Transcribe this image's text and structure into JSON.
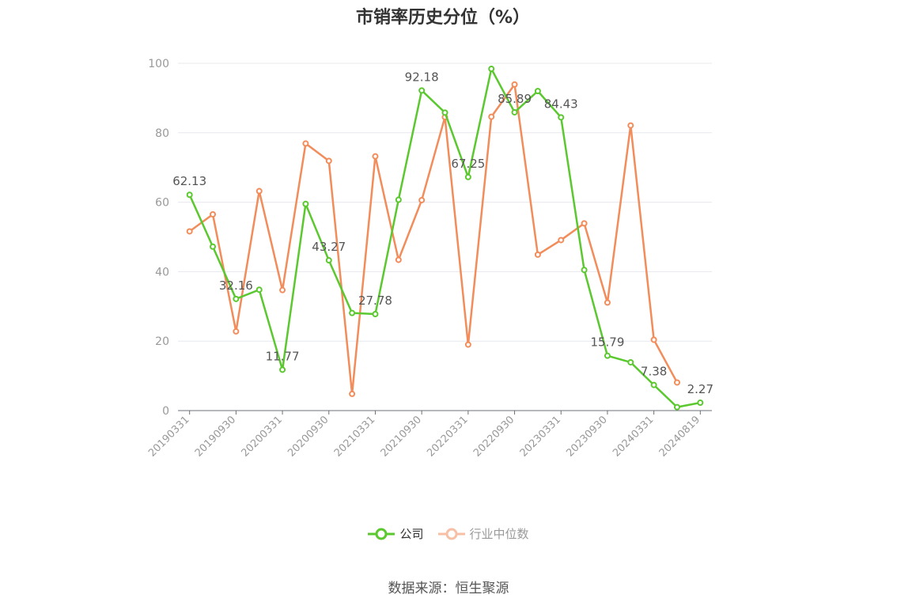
{
  "source_text": "数据来源：恒生聚源",
  "colors": {
    "company": "#5ac82e",
    "industry": "#f28c5a",
    "grid": "#e6e8ee",
    "axis": "#6e7079",
    "tick": "#999999",
    "label": "#555555"
  },
  "chart_data": {
    "type": "line",
    "title": "市销率历史分位（%）",
    "xlabel": "",
    "ylabel": "",
    "ylim": [
      0,
      100
    ],
    "yticks": [
      0,
      20,
      40,
      60,
      80,
      100
    ],
    "grid": true,
    "legend_position": "bottom",
    "x": [
      "20190331",
      "20190630",
      "20190930",
      "20191231",
      "20200331",
      "20200630",
      "20200930",
      "20201231",
      "20210331",
      "20210630",
      "20210930",
      "20211231",
      "20220331",
      "20220630",
      "20220930",
      "20221231",
      "20230331",
      "20230630",
      "20230930",
      "20231231",
      "20240331",
      "20240630",
      "20240819"
    ],
    "xtick_labels": [
      "20190331",
      "20190930",
      "20200331",
      "20200930",
      "20210331",
      "20210930",
      "20220331",
      "20220930",
      "20230331",
      "20230930",
      "20240331",
      "20240819"
    ],
    "series": [
      {
        "name": "公司",
        "values": [
          62.13,
          47.2,
          32.16,
          34.8,
          11.77,
          59.5,
          43.27,
          28.1,
          27.78,
          60.7,
          92.18,
          85.8,
          67.25,
          98.4,
          85.89,
          92.0,
          84.43,
          40.5,
          15.79,
          13.9,
          7.38,
          1.0,
          2.27
        ],
        "labels": [
          "62.13",
          null,
          "32.16",
          null,
          "11.77",
          null,
          "43.27",
          null,
          "27.78",
          null,
          "92.18",
          null,
          "67.25",
          null,
          "85.89",
          null,
          "84.43",
          null,
          "15.79",
          null,
          "7.38",
          null,
          "2.27"
        ]
      },
      {
        "name": "行业中位数",
        "values": [
          51.6,
          56.5,
          22.8,
          63.2,
          34.7,
          76.9,
          71.9,
          4.8,
          73.2,
          43.4,
          60.6,
          84.5,
          19.0,
          84.6,
          93.9,
          44.9,
          49.1,
          53.9,
          31.1,
          82.1,
          20.4,
          8.1,
          null
        ]
      }
    ]
  }
}
